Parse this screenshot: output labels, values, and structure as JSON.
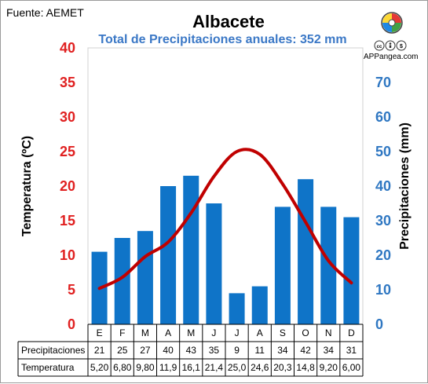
{
  "source": "Fuente: AEMET",
  "brand": {
    "name": "APPangea.com",
    "license_badges": [
      "cc",
      "by",
      "nc"
    ]
  },
  "colors": {
    "temperature": "#c00000",
    "precipitation": "#0f74c8",
    "left_axis": "#e02020",
    "right_axis": "#2f77c2",
    "subtitle": "#3b78c6"
  },
  "chart_data": {
    "type": "bar",
    "title": "Albacete",
    "subtitle": "Total de Precipitaciones anuales: 352 mm",
    "categories": [
      "E",
      "F",
      "M",
      "A",
      "M",
      "J",
      "J",
      "A",
      "S",
      "O",
      "N",
      "D"
    ],
    "series": [
      {
        "name": "Precipitaciones",
        "type": "bar",
        "axis": "right",
        "values": [
          21,
          25,
          27,
          40,
          43,
          35,
          9,
          11,
          34,
          42,
          34,
          31
        ],
        "labels": [
          "21",
          "25",
          "27",
          "40",
          "43",
          "35",
          "9",
          "11",
          "34",
          "42",
          "34",
          "31"
        ]
      },
      {
        "name": "Temperatura",
        "type": "line",
        "axis": "left",
        "values": [
          5.2,
          6.8,
          9.8,
          11.9,
          16.1,
          21.4,
          25.0,
          24.6,
          20.3,
          14.8,
          9.2,
          6.0
        ],
        "labels": [
          "5,20",
          "6,80",
          "9,80",
          "11,9",
          "16,1",
          "21,4",
          "25,0",
          "24,6",
          "20,3",
          "14,8",
          "9,20",
          "6,00"
        ]
      }
    ],
    "ylabel_left": "Temperatura (ºC)",
    "ylim_left": [
      0,
      40
    ],
    "yticks_left": [
      "0",
      "5",
      "10",
      "15",
      "20",
      "25",
      "30",
      "35",
      "40"
    ],
    "ylabel_right": "Precipitaciones (mm)",
    "ylim_right": [
      0,
      80
    ],
    "yticks_right": [
      "0",
      "10",
      "20",
      "30",
      "40",
      "50",
      "60",
      "70"
    ],
    "grid": false,
    "legend": "data table below the plot"
  }
}
